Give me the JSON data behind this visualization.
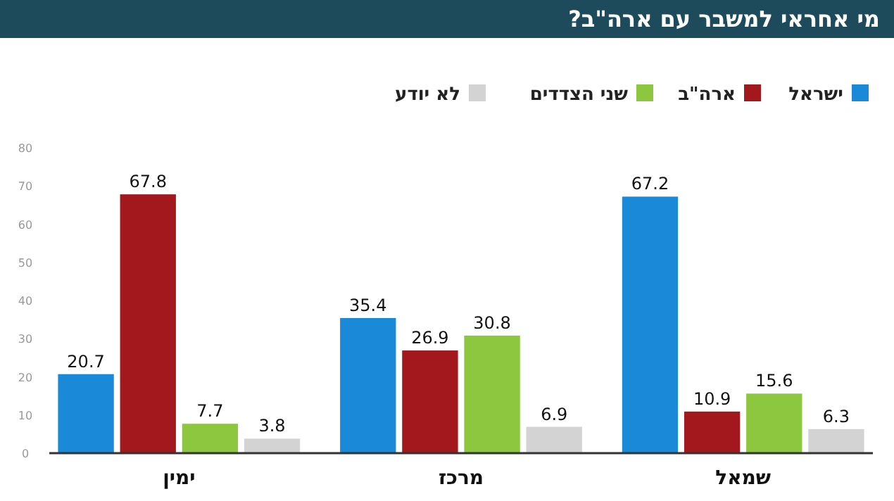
{
  "chart_data": {
    "type": "bar",
    "title": "מי אחראי למשבר עם ארה\"ב?",
    "categories": [
      "ימין",
      "מרכז",
      "שמאל"
    ],
    "series": [
      {
        "name": "ישראל",
        "color": "#1a8ad8",
        "values": [
          20.7,
          35.4,
          67.2
        ]
      },
      {
        "name": "ארה\"ב",
        "color": "#a3181c",
        "values": [
          67.8,
          26.9,
          10.9
        ]
      },
      {
        "name": "שני הצדדים",
        "color": "#8dc63f",
        "values": [
          7.7,
          30.8,
          15.6
        ]
      },
      {
        "name": "לא יודע",
        "color": "#d3d3d3",
        "values": [
          3.8,
          6.9,
          6.3
        ]
      }
    ],
    "ylim": [
      0,
      80
    ],
    "yticks": [
      0,
      10,
      20,
      30,
      40,
      50,
      60,
      70,
      80
    ],
    "data_labels": true,
    "legend": "top right",
    "grid": false
  }
}
